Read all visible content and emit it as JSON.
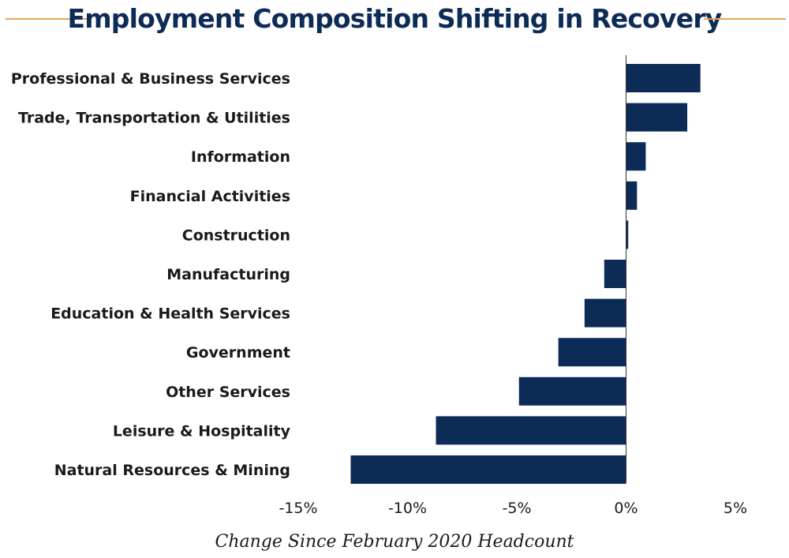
{
  "chart_data": {
    "type": "bar",
    "orientation": "horizontal",
    "title": "Employment Composition Shifting in Recovery",
    "xlabel": "Change Since February 2020 Headcount",
    "ylabel": "",
    "categories": [
      "Professional & Business Services",
      "Trade, Transportation & Utilities",
      "Information",
      "Financial Activities",
      "Construction",
      "Manufacturing",
      "Education & Health Services",
      "Government",
      "Other Services",
      "Leisure & Hospitality",
      "Natural Resources & Mining"
    ],
    "values": [
      3.4,
      2.8,
      0.9,
      0.5,
      0.1,
      -1.0,
      -1.9,
      -3.1,
      -4.9,
      -8.7,
      -12.6
    ],
    "xlim": [
      -15,
      5
    ],
    "xticks": [
      -15,
      -10,
      -5,
      0,
      5
    ],
    "xtick_labels": [
      "-15%",
      "-10%",
      "-5%",
      "0%",
      "5%"
    ],
    "grid": false,
    "colors": {
      "bar": "#0d2b57",
      "title": "#0d2b57",
      "accent_line": "#e8a35a",
      "axis": "#333333",
      "text": "#1a1a1a"
    }
  }
}
